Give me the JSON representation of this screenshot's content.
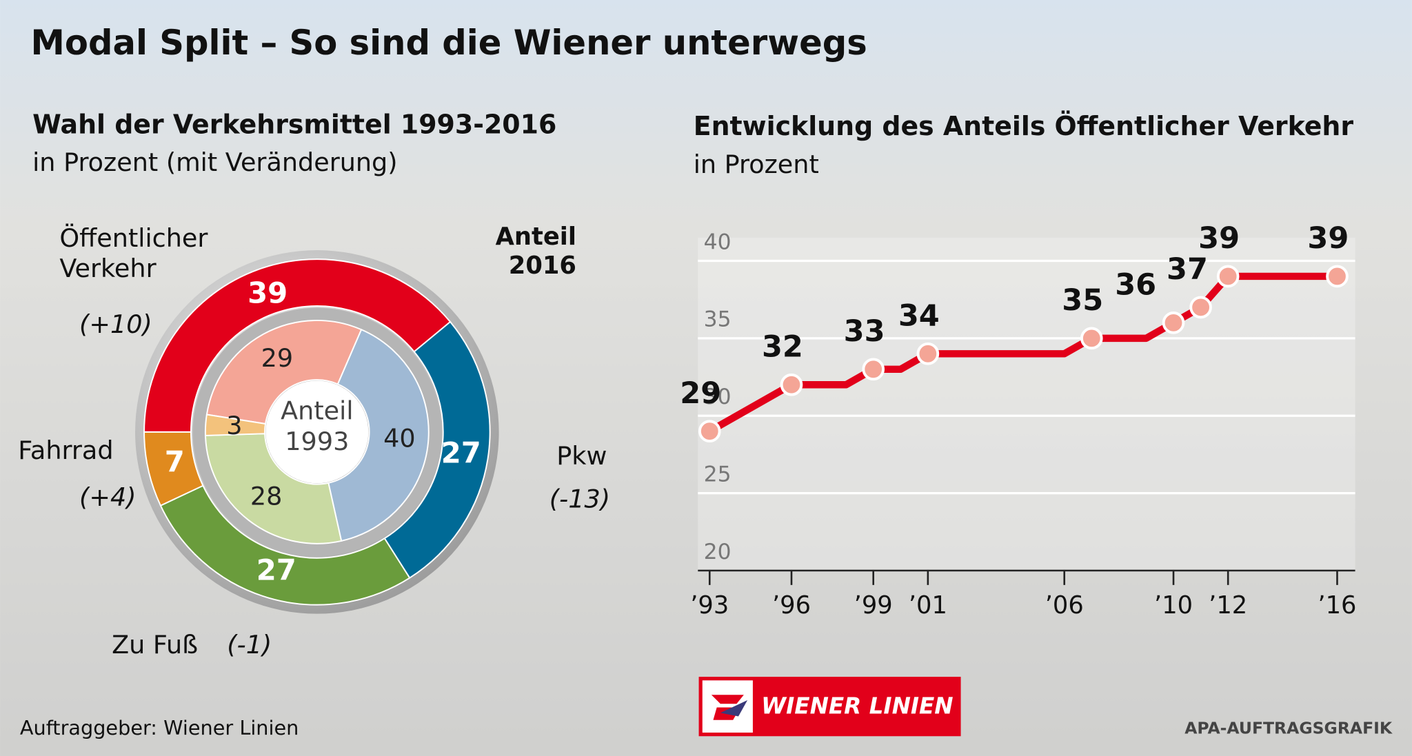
{
  "title": "Modal Split – So sind die Wiener unterwegs",
  "source": "Auftraggeber: Wiener Linien",
  "credit": "APA-AUFTRAGSGRAFIK",
  "logo_text": "WIENER LINIEN",
  "chart_data": [
    {
      "type": "donut",
      "title": "Wahl der Verkehrsmittel 1993-2016",
      "subtitle": "in Prozent (mit Veränderung)",
      "categories": [
        "Öffentlicher Verkehr",
        "Pkw",
        "Zu Fuß",
        "Fahrrad"
      ],
      "change_labels": [
        "(+10)",
        "(-13)",
        "(-1)",
        "(+4)"
      ],
      "series": [
        {
          "name": "Anteil 2016",
          "values": [
            39,
            27,
            27,
            7
          ],
          "colors": [
            "#e2001a",
            "#006a96",
            "#6a9c3c",
            "#e08a1e"
          ]
        },
        {
          "name": "Anteil 1993",
          "values": [
            29,
            40,
            28,
            3
          ],
          "colors": [
            "#f4a596",
            "#9fb9d4",
            "#c9daa2",
            "#f3c27c"
          ]
        }
      ]
    },
    {
      "type": "line",
      "title": "Entwicklung des Anteils Öffentlicher Verkehr",
      "subtitle": "in Prozent",
      "x": [
        1993,
        1996,
        1998,
        1999,
        2000,
        2001,
        2006,
        2007,
        2009,
        2010,
        2011,
        2012,
        2016
      ],
      "values": [
        29,
        32,
        32,
        33,
        33,
        34,
        34,
        35,
        35,
        36,
        37,
        39,
        39
      ],
      "value_labels": [
        "29",
        "32",
        null,
        "33",
        null,
        "34",
        null,
        "35",
        null,
        "36",
        "37",
        "39",
        "39"
      ],
      "color": "#e2001a",
      "xlim": [
        1992.57,
        2016.66
      ],
      "ylim": [
        20,
        41.5
      ],
      "xticks": [
        {
          "value": 1993,
          "label": "’93"
        },
        {
          "value": 1996,
          "label": "’96"
        },
        {
          "value": 1999,
          "label": "’99"
        },
        {
          "value": 2001,
          "label": "’01"
        },
        {
          "value": 2006,
          "label": "’06"
        },
        {
          "value": 2010,
          "label": "’10"
        },
        {
          "value": 2012,
          "label": "’12"
        },
        {
          "value": 2016,
          "label": "’16"
        }
      ],
      "yticks": [
        20,
        25,
        30,
        35,
        40
      ],
      "grid": true
    }
  ]
}
